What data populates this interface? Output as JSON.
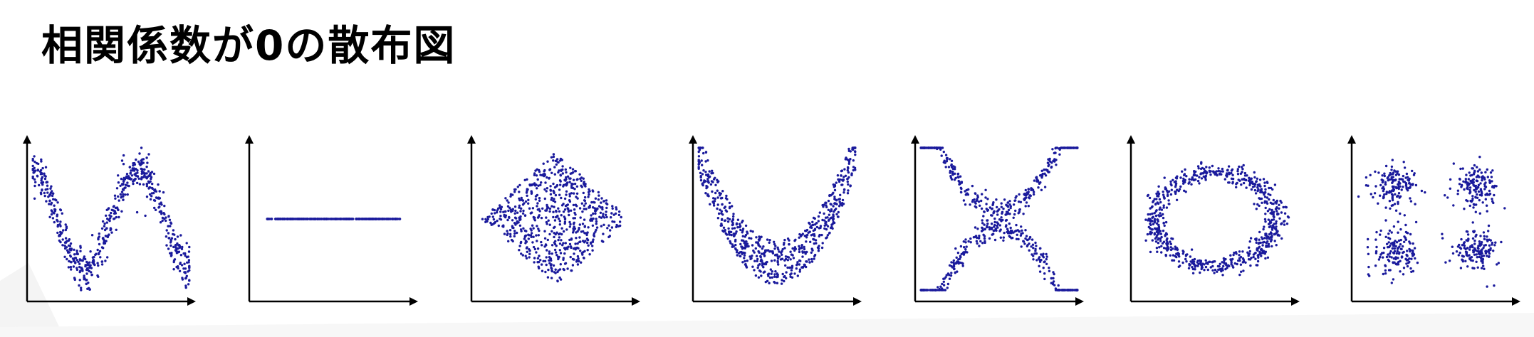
{
  "page": {
    "title": "相関係数が0の散布図"
  },
  "colors": {
    "point": "#1a1a9c",
    "axis": "#000000"
  },
  "chart_data": [
    {
      "type": "scatter",
      "pattern": "sine-wave",
      "n_points": 600,
      "xlim": [
        0,
        1
      ],
      "ylim": [
        0,
        1
      ]
    },
    {
      "type": "scatter",
      "pattern": "horizontal-line",
      "n_points": 300,
      "xlim": [
        0,
        1
      ],
      "ylim": [
        0,
        1
      ]
    },
    {
      "type": "scatter",
      "pattern": "diamond",
      "n_points": 700,
      "xlim": [
        0,
        1
      ],
      "ylim": [
        0,
        1
      ]
    },
    {
      "type": "scatter",
      "pattern": "parabola",
      "n_points": 650,
      "xlim": [
        0,
        1
      ],
      "ylim": [
        0,
        1
      ]
    },
    {
      "type": "scatter",
      "pattern": "x-shape",
      "n_points": 650,
      "xlim": [
        0,
        1
      ],
      "ylim": [
        0,
        1
      ]
    },
    {
      "type": "scatter",
      "pattern": "ring",
      "n_points": 700,
      "xlim": [
        0,
        1
      ],
      "ylim": [
        0,
        1
      ]
    },
    {
      "type": "scatter",
      "pattern": "four-clusters",
      "n_points": 600,
      "xlim": [
        0,
        1
      ],
      "ylim": [
        0,
        1
      ]
    }
  ]
}
